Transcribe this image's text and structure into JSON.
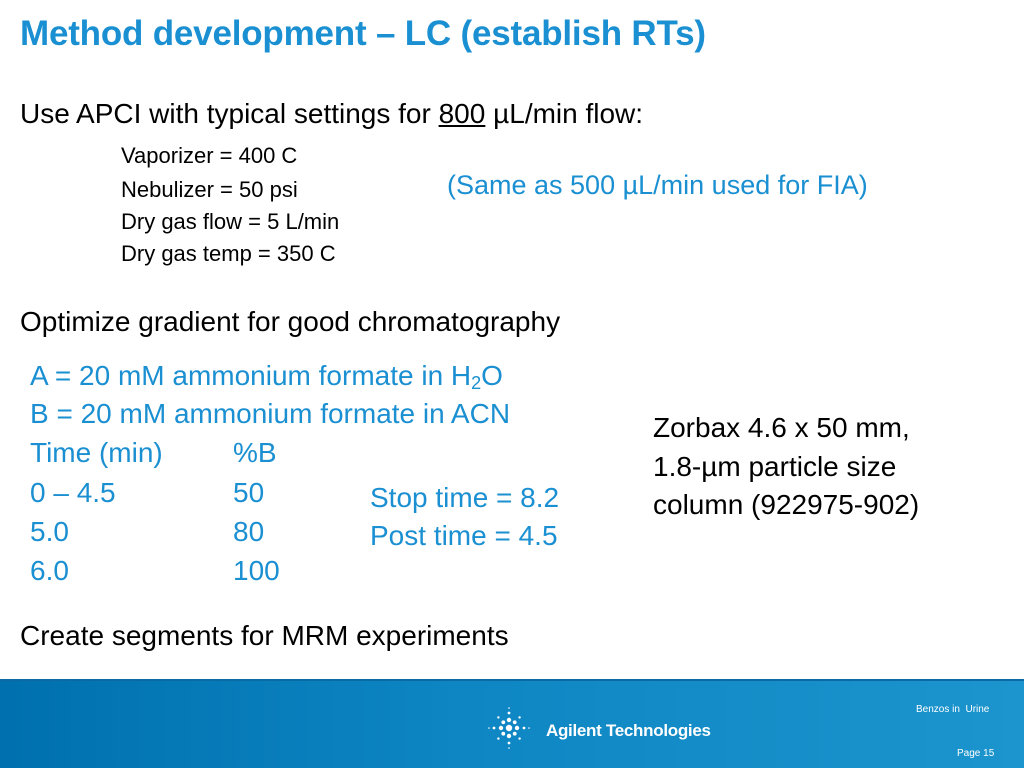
{
  "slide": {
    "title": "Method development – LC (establish RTs)",
    "apci": {
      "intro_before": "Use APCI with typical settings for ",
      "flow_value": "800",
      "intro_after": " µL/min flow:",
      "settings": [
        "Vaporizer = 400 C",
        "Nebulizer = 50 psi",
        "Dry gas flow = 5 L/min",
        "Dry gas temp = 350 C"
      ],
      "note": "(Same as 500 µL/min used for FIA)"
    },
    "gradient": {
      "heading": "Optimize gradient for good chromatography",
      "mobile_a_before": "A = 20 mM ammonium formate in H",
      "mobile_a_sub": "2",
      "mobile_a_after": "O",
      "mobile_b": "B = 20 mM ammonium formate in ACN",
      "table_header": {
        "time": "Time (min)",
        "percent_b": "%B"
      },
      "table_rows": [
        {
          "time": "0 – 4.5",
          "percent_b": "50"
        },
        {
          "time": "5.0",
          "percent_b": "80"
        },
        {
          "time": "6.0",
          "percent_b": "100"
        }
      ],
      "stop_time": "Stop time = 8.2",
      "post_time": "Post time = 4.5"
    },
    "column": {
      "lines": [
        "Zorbax 4.6 x 50 mm,",
        "1.8-µm particle size",
        "column (922975-902)"
      ]
    },
    "segments": "Create segments for MRM experiments"
  },
  "footer": {
    "company": "Agilent Technologies",
    "logo_icon": "agilent-spark-icon",
    "subject": "Benzos in  Urine",
    "page": "Page 15",
    "colors": {
      "band": "#0d86c3",
      "accent": "#1a8fd1"
    }
  }
}
